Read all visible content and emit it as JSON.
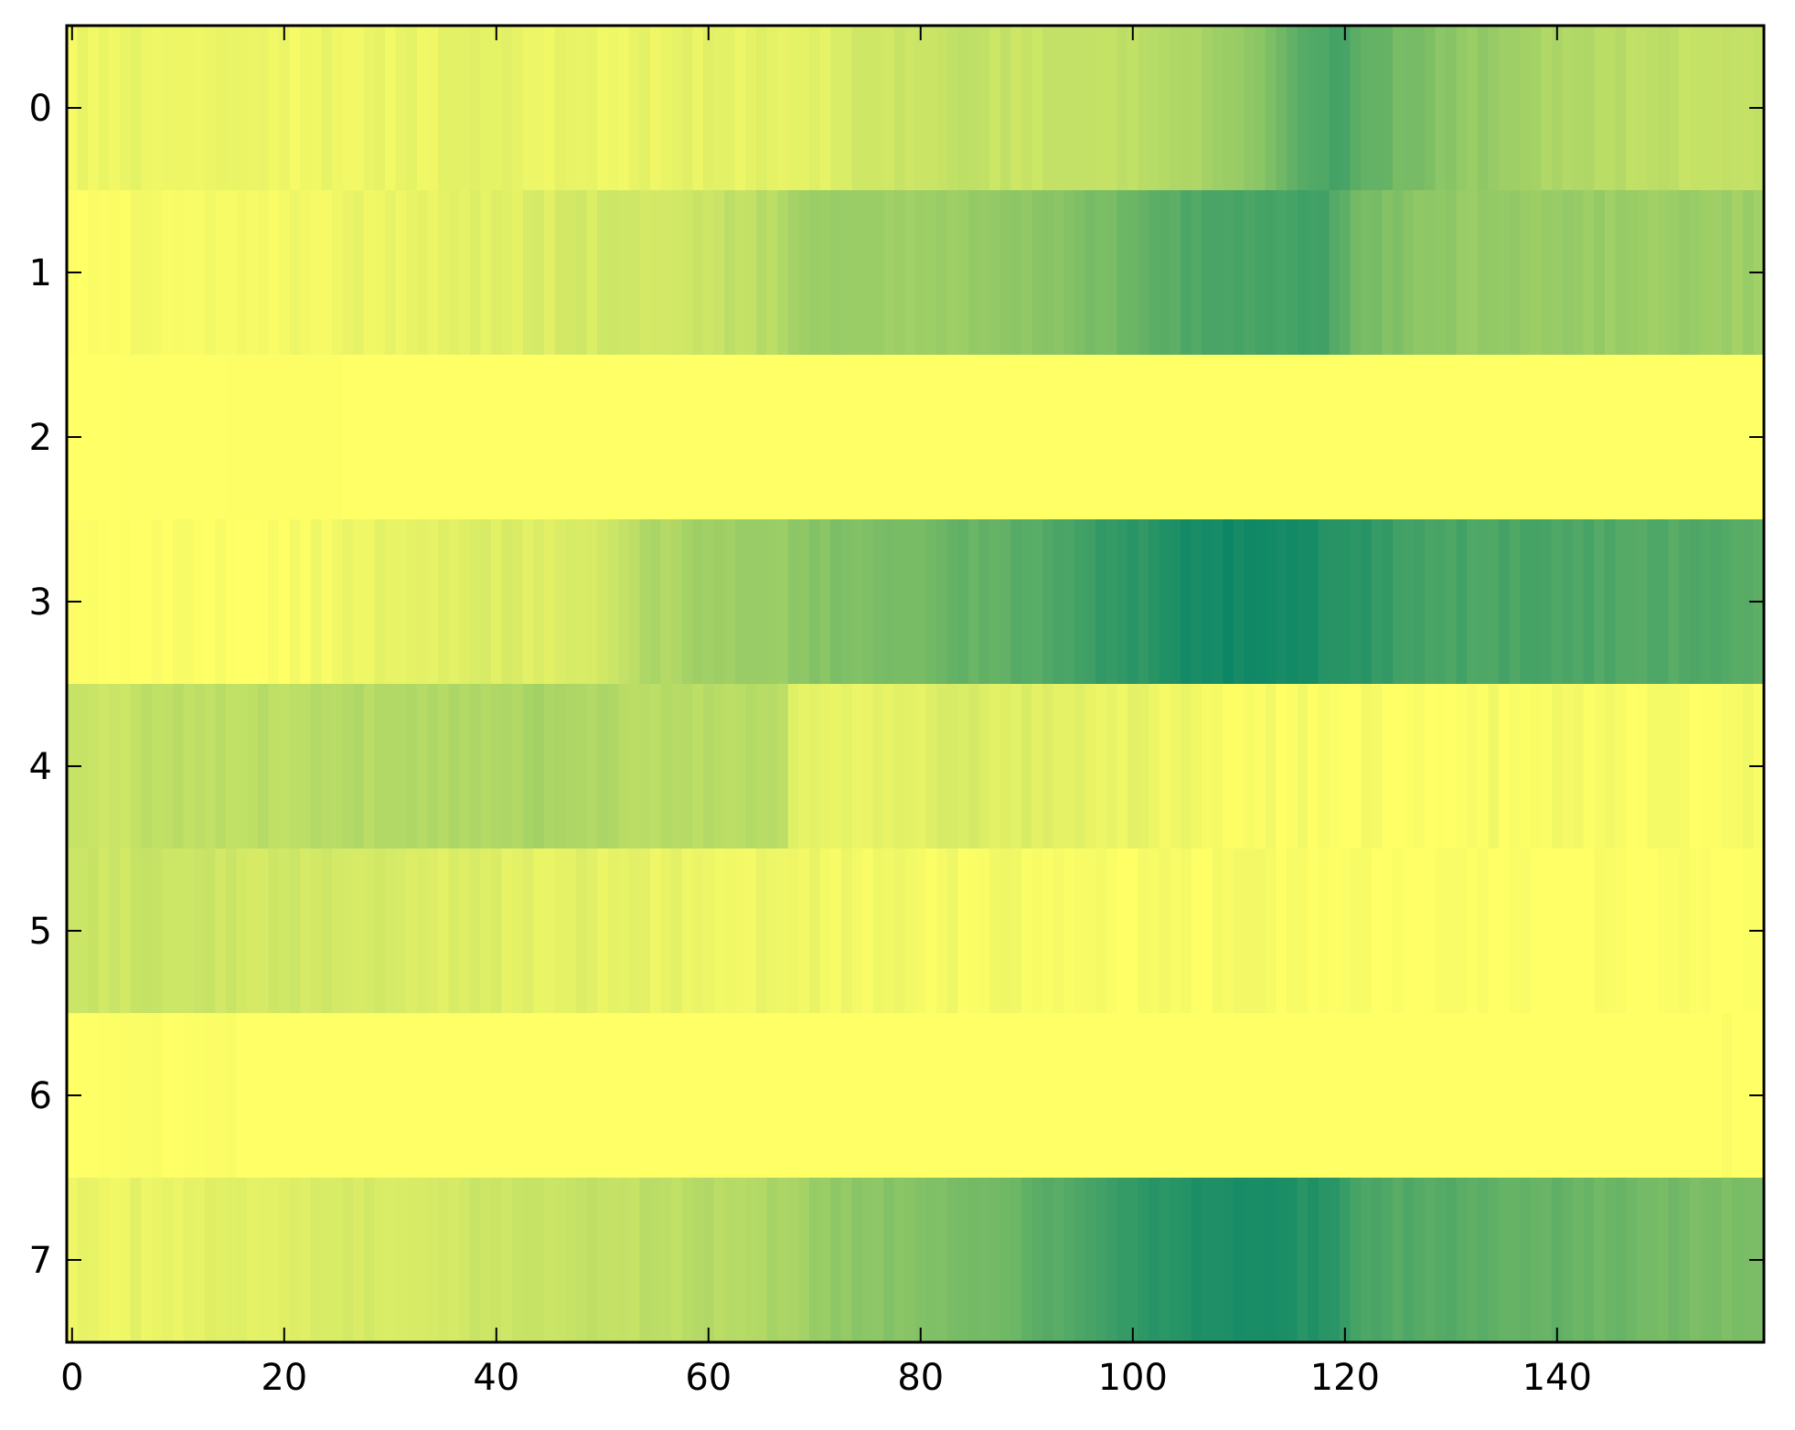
{
  "chart_data": {
    "type": "heatmap",
    "title": "",
    "xlabel": "",
    "ylabel": "",
    "colormap": "summer_r",
    "colormap_stops": [
      "#ffff66",
      "#008066"
    ],
    "vmin": 0,
    "vmax": 1,
    "xlim": [
      -0.5,
      159.5
    ],
    "ylim": [
      7.5,
      -0.5
    ],
    "x_ticks": [
      0,
      20,
      40,
      60,
      80,
      100,
      120,
      140
    ],
    "y_ticks": [
      0,
      1,
      2,
      3,
      4,
      5,
      6,
      7
    ],
    "n_columns": 160,
    "grid": false,
    "legend": "none",
    "rows": [
      {
        "row": 0,
        "profile": [
          [
            0,
            0.07
          ],
          [
            10,
            0.09
          ],
          [
            20,
            0.06
          ],
          [
            30,
            0.08
          ],
          [
            40,
            0.1
          ],
          [
            50,
            0.07
          ],
          [
            60,
            0.1
          ],
          [
            70,
            0.1
          ],
          [
            76,
            0.2
          ],
          [
            85,
            0.23
          ],
          [
            95,
            0.22
          ],
          [
            106,
            0.3
          ],
          [
            112,
            0.45
          ],
          [
            115,
            0.62
          ],
          [
            119,
            0.72
          ],
          [
            125,
            0.55
          ],
          [
            132,
            0.42
          ],
          [
            140,
            0.32
          ],
          [
            150,
            0.25
          ],
          [
            159,
            0.22
          ]
        ]
      },
      {
        "row": 1,
        "profile": [
          [
            0,
            0.02
          ],
          [
            10,
            0.03
          ],
          [
            20,
            0.05
          ],
          [
            30,
            0.09
          ],
          [
            40,
            0.12
          ],
          [
            50,
            0.17
          ],
          [
            60,
            0.22
          ],
          [
            67,
            0.3
          ],
          [
            70,
            0.4
          ],
          [
            80,
            0.38
          ],
          [
            90,
            0.45
          ],
          [
            95,
            0.5
          ],
          [
            100,
            0.58
          ],
          [
            105,
            0.68
          ],
          [
            110,
            0.72
          ],
          [
            115,
            0.74
          ],
          [
            118,
            0.72
          ],
          [
            122,
            0.52
          ],
          [
            130,
            0.42
          ],
          [
            140,
            0.4
          ],
          [
            150,
            0.4
          ],
          [
            159,
            0.38
          ]
        ]
      },
      {
        "row": 2,
        "profile": [
          [
            0,
            0.0
          ],
          [
            25,
            0.01
          ],
          [
            26,
            0.0
          ],
          [
            52,
            0.0
          ],
          [
            53,
            0.0
          ],
          [
            159,
            0.0
          ]
        ]
      },
      {
        "row": 3,
        "profile": [
          [
            0,
            0.0
          ],
          [
            20,
            0.01
          ],
          [
            24,
            0.05
          ],
          [
            30,
            0.1
          ],
          [
            40,
            0.13
          ],
          [
            50,
            0.15
          ],
          [
            54,
            0.3
          ],
          [
            60,
            0.37
          ],
          [
            68,
            0.42
          ],
          [
            70,
            0.48
          ],
          [
            80,
            0.52
          ],
          [
            82,
            0.58
          ],
          [
            90,
            0.66
          ],
          [
            97,
            0.78
          ],
          [
            100,
            0.82
          ],
          [
            105,
            0.9
          ],
          [
            110,
            0.93
          ],
          [
            115,
            0.92
          ],
          [
            120,
            0.85
          ],
          [
            125,
            0.77
          ],
          [
            130,
            0.72
          ],
          [
            140,
            0.7
          ],
          [
            150,
            0.68
          ],
          [
            159,
            0.65
          ]
        ]
      },
      {
        "row": 4,
        "profile": [
          [
            0,
            0.2
          ],
          [
            10,
            0.25
          ],
          [
            20,
            0.27
          ],
          [
            30,
            0.3
          ],
          [
            40,
            0.32
          ],
          [
            45,
            0.34
          ],
          [
            50,
            0.3
          ],
          [
            60,
            0.27
          ],
          [
            67,
            0.28
          ],
          [
            68,
            0.12
          ],
          [
            75,
            0.1
          ],
          [
            85,
            0.15
          ],
          [
            90,
            0.13
          ],
          [
            100,
            0.08
          ],
          [
            105,
            0.06
          ],
          [
            110,
            0.03
          ],
          [
            115,
            0.02
          ],
          [
            130,
            0.02
          ],
          [
            140,
            0.03
          ],
          [
            150,
            0.02
          ],
          [
            159,
            0.03
          ]
        ]
      },
      {
        "row": 5,
        "profile": [
          [
            0,
            0.2
          ],
          [
            10,
            0.2
          ],
          [
            20,
            0.18
          ],
          [
            30,
            0.16
          ],
          [
            40,
            0.12
          ],
          [
            50,
            0.1
          ],
          [
            60,
            0.08
          ],
          [
            70,
            0.06
          ],
          [
            80,
            0.04
          ],
          [
            90,
            0.03
          ],
          [
            100,
            0.02
          ],
          [
            110,
            0.03
          ],
          [
            120,
            0.03
          ],
          [
            123,
            0.0
          ],
          [
            159,
            0.0
          ]
        ]
      },
      {
        "row": 6,
        "profile": [
          [
            0,
            0.0
          ],
          [
            8,
            0.02
          ],
          [
            9,
            0.0
          ],
          [
            15,
            0.02
          ],
          [
            16,
            0.0
          ],
          [
            155,
            0.0
          ],
          [
            156,
            0.02
          ],
          [
            157,
            0.0
          ],
          [
            159,
            0.0
          ]
        ]
      },
      {
        "row": 7,
        "profile": [
          [
            0,
            0.07
          ],
          [
            10,
            0.1
          ],
          [
            20,
            0.13
          ],
          [
            30,
            0.17
          ],
          [
            40,
            0.2
          ],
          [
            50,
            0.23
          ],
          [
            60,
            0.28
          ],
          [
            67,
            0.33
          ],
          [
            70,
            0.4
          ],
          [
            75,
            0.45
          ],
          [
            80,
            0.5
          ],
          [
            90,
            0.6
          ],
          [
            97,
            0.75
          ],
          [
            100,
            0.8
          ],
          [
            105,
            0.85
          ],
          [
            110,
            0.9
          ],
          [
            115,
            0.88
          ],
          [
            118,
            0.85
          ],
          [
            122,
            0.7
          ],
          [
            130,
            0.65
          ],
          [
            140,
            0.6
          ],
          [
            150,
            0.55
          ],
          [
            159,
            0.5
          ]
        ]
      }
    ]
  }
}
